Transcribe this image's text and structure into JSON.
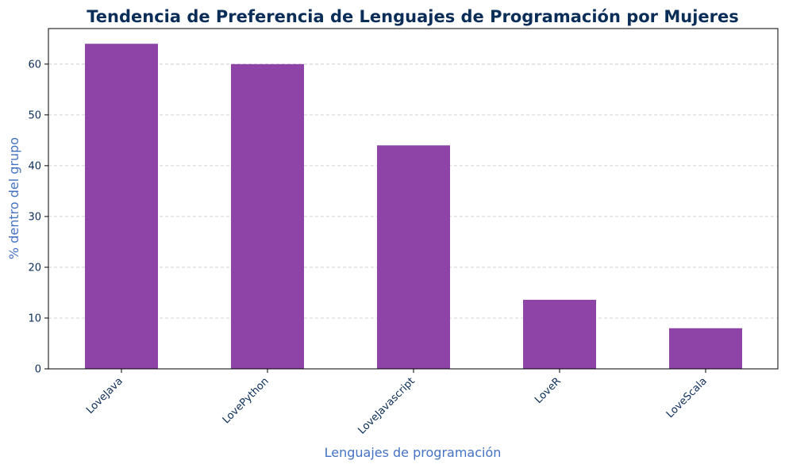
{
  "chart_data": {
    "type": "bar",
    "title": "Tendencia de Preferencia de Lenguajes de Programación por Mujeres",
    "xlabel": "Lenguajes de programación",
    "ylabel": "% dentro del grupo",
    "categories": [
      "LoveJava",
      "LovePython",
      "LoveJavascript",
      "LoveR",
      "LoveScala"
    ],
    "values": [
      64.0,
      60.0,
      44.0,
      13.6,
      8.0
    ],
    "ylim": [
      0,
      67
    ],
    "yticks": [
      "0",
      "10",
      "20",
      "30",
      "40",
      "50",
      "60"
    ],
    "grid": "y-dashed",
    "bar_color": "#8e44a6",
    "title_color": "#0b2e59",
    "label_color": "#4472c4",
    "tick_color": "#0b2e59"
  }
}
